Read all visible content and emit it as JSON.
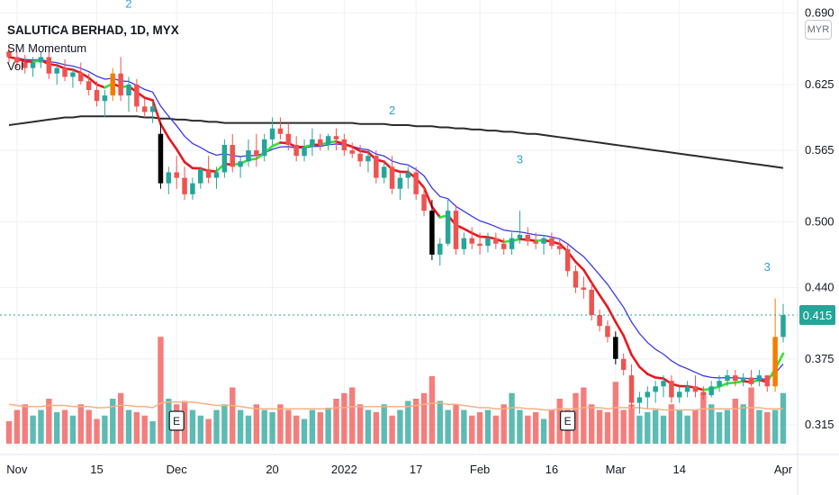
{
  "legend": {
    "symbol": "SALUTICA BERHAD, 1D, MYX",
    "indicator": "SM Momentum",
    "volume_label": "Vol"
  },
  "currency_button": "MYR",
  "last_price_label": "0.415",
  "colors": {
    "up": "#26a69a",
    "down": "#ef5350",
    "dn_black": "#000000",
    "highlight": "#f57c00",
    "ema_fast": "#e8171f",
    "ema_fast_bull": "#34e234",
    "ema_mid": "#3a3ae6",
    "ema_long": "#2b2b2b",
    "vol_ma": "#f4b183",
    "grid": "#eef0f3",
    "signal": "#2e9fd8"
  },
  "chart_data": {
    "type": "candlestick",
    "ylim": [
      0.292,
      0.702
    ],
    "y_ticks": [
      0.315,
      0.375,
      0.44,
      0.5,
      0.565,
      0.625,
      0.69
    ],
    "y_tick_labels": [
      "0.315",
      "0.375",
      "0.440",
      "0.500",
      "0.565",
      "0.625",
      "0.690"
    ],
    "x_ticks": [
      {
        "i": 1,
        "label": "Nov"
      },
      {
        "i": 11,
        "label": "15"
      },
      {
        "i": 21,
        "label": "Dec"
      },
      {
        "i": 33,
        "label": "20"
      },
      {
        "i": 42,
        "label": "2022"
      },
      {
        "i": 51,
        "label": "17"
      },
      {
        "i": 59,
        "label": "Feb"
      },
      {
        "i": 68,
        "label": "16"
      },
      {
        "i": 76,
        "label": "Mar"
      },
      {
        "i": 84,
        "label": "14"
      },
      {
        "i": 97,
        "label": "Apr"
      }
    ],
    "x_count": 98,
    "ohlc": [
      [
        0.655,
        0.66,
        0.645,
        0.65
      ],
      [
        0.65,
        0.655,
        0.64,
        0.645
      ],
      [
        0.645,
        0.652,
        0.635,
        0.64
      ],
      [
        0.64,
        0.65,
        0.632,
        0.645
      ],
      [
        0.645,
        0.655,
        0.64,
        0.65
      ],
      [
        0.65,
        0.655,
        0.63,
        0.635
      ],
      [
        0.635,
        0.645,
        0.625,
        0.64
      ],
      [
        0.64,
        0.648,
        0.628,
        0.632
      ],
      [
        0.632,
        0.64,
        0.622,
        0.636
      ],
      [
        0.636,
        0.645,
        0.625,
        0.628
      ],
      [
        0.628,
        0.635,
        0.615,
        0.62
      ],
      [
        0.62,
        0.628,
        0.605,
        0.61
      ],
      [
        0.61,
        0.62,
        0.595,
        0.615
      ],
      [
        0.615,
        0.64,
        0.61,
        0.635
      ],
      [
        0.635,
        0.65,
        0.61,
        0.615
      ],
      [
        0.615,
        0.632,
        0.6,
        0.625
      ],
      [
        0.625,
        0.63,
        0.6,
        0.605
      ],
      [
        0.605,
        0.612,
        0.595,
        0.6
      ],
      [
        0.6,
        0.61,
        0.59,
        0.605
      ],
      [
        0.58,
        0.59,
        0.53,
        0.535
      ],
      [
        0.535,
        0.55,
        0.525,
        0.545
      ],
      [
        0.545,
        0.56,
        0.53,
        0.54
      ],
      [
        0.54,
        0.55,
        0.52,
        0.525
      ],
      [
        0.525,
        0.54,
        0.52,
        0.535
      ],
      [
        0.535,
        0.55,
        0.53,
        0.548
      ],
      [
        0.548,
        0.56,
        0.535,
        0.54
      ],
      [
        0.54,
        0.55,
        0.53,
        0.545
      ],
      [
        0.545,
        0.575,
        0.54,
        0.57
      ],
      [
        0.57,
        0.58,
        0.545,
        0.55
      ],
      [
        0.55,
        0.56,
        0.54,
        0.555
      ],
      [
        0.555,
        0.575,
        0.55,
        0.565
      ],
      [
        0.565,
        0.58,
        0.55,
        0.56
      ],
      [
        0.56,
        0.58,
        0.555,
        0.575
      ],
      [
        0.575,
        0.595,
        0.57,
        0.585
      ],
      [
        0.585,
        0.595,
        0.575,
        0.58
      ],
      [
        0.58,
        0.59,
        0.565,
        0.57
      ],
      [
        0.57,
        0.578,
        0.555,
        0.56
      ],
      [
        0.56,
        0.575,
        0.555,
        0.568
      ],
      [
        0.568,
        0.585,
        0.56,
        0.575
      ],
      [
        0.575,
        0.58,
        0.565,
        0.57
      ],
      [
        0.57,
        0.58,
        0.565,
        0.578
      ],
      [
        0.578,
        0.585,
        0.565,
        0.575
      ],
      [
        0.575,
        0.58,
        0.56,
        0.565
      ],
      [
        0.565,
        0.572,
        0.558,
        0.562
      ],
      [
        0.562,
        0.57,
        0.55,
        0.555
      ],
      [
        0.555,
        0.565,
        0.545,
        0.56
      ],
      [
        0.56,
        0.565,
        0.535,
        0.54
      ],
      [
        0.54,
        0.555,
        0.535,
        0.55
      ],
      [
        0.55,
        0.56,
        0.525,
        0.53
      ],
      [
        0.53,
        0.545,
        0.52,
        0.54
      ],
      [
        0.54,
        0.55,
        0.53,
        0.545
      ],
      [
        0.545,
        0.55,
        0.52,
        0.525
      ],
      [
        0.525,
        0.532,
        0.505,
        0.51
      ],
      [
        0.51,
        0.52,
        0.465,
        0.47
      ],
      [
        0.47,
        0.485,
        0.46,
        0.48
      ],
      [
        0.48,
        0.52,
        0.478,
        0.51
      ],
      [
        0.51,
        0.515,
        0.47,
        0.475
      ],
      [
        0.475,
        0.49,
        0.47,
        0.485
      ],
      [
        0.485,
        0.495,
        0.475,
        0.48
      ],
      [
        0.48,
        0.49,
        0.47,
        0.478
      ],
      [
        0.478,
        0.49,
        0.472,
        0.485
      ],
      [
        0.485,
        0.49,
        0.475,
        0.48
      ],
      [
        0.48,
        0.485,
        0.47,
        0.475
      ],
      [
        0.475,
        0.49,
        0.47,
        0.485
      ],
      [
        0.485,
        0.51,
        0.48,
        0.488
      ],
      [
        0.488,
        0.495,
        0.478,
        0.482
      ],
      [
        0.482,
        0.49,
        0.475,
        0.48
      ],
      [
        0.48,
        0.488,
        0.47,
        0.485
      ],
      [
        0.485,
        0.49,
        0.475,
        0.478
      ],
      [
        0.478,
        0.485,
        0.47,
        0.475
      ],
      [
        0.475,
        0.48,
        0.45,
        0.455
      ],
      [
        0.455,
        0.46,
        0.435,
        0.44
      ],
      [
        0.44,
        0.45,
        0.43,
        0.438
      ],
      [
        0.438,
        0.445,
        0.41,
        0.415
      ],
      [
        0.415,
        0.42,
        0.4,
        0.405
      ],
      [
        0.405,
        0.41,
        0.39,
        0.395
      ],
      [
        0.395,
        0.4,
        0.37,
        0.375
      ],
      [
        0.375,
        0.38,
        0.36,
        0.365
      ],
      [
        0.36,
        0.37,
        0.33,
        0.335
      ],
      [
        0.335,
        0.345,
        0.325,
        0.34
      ],
      [
        0.34,
        0.35,
        0.33,
        0.345
      ],
      [
        0.345,
        0.355,
        0.335,
        0.35
      ],
      [
        0.35,
        0.36,
        0.34,
        0.355
      ],
      [
        0.355,
        0.36,
        0.335,
        0.34
      ],
      [
        0.34,
        0.35,
        0.335,
        0.345
      ],
      [
        0.345,
        0.355,
        0.34,
        0.35
      ],
      [
        0.35,
        0.36,
        0.34,
        0.345
      ],
      [
        0.345,
        0.35,
        0.338,
        0.342
      ],
      [
        0.342,
        0.355,
        0.34,
        0.35
      ],
      [
        0.35,
        0.36,
        0.345,
        0.355
      ],
      [
        0.355,
        0.365,
        0.35,
        0.36
      ],
      [
        0.36,
        0.365,
        0.35,
        0.355
      ],
      [
        0.355,
        0.362,
        0.35,
        0.358
      ],
      [
        0.358,
        0.365,
        0.35,
        0.352
      ],
      [
        0.355,
        0.365,
        0.35,
        0.36
      ],
      [
        0.36,
        0.36,
        0.345,
        0.35
      ],
      [
        0.35,
        0.43,
        0.345,
        0.395
      ],
      [
        0.395,
        0.425,
        0.39,
        0.415
      ]
    ],
    "special": {
      "black": [
        19,
        53,
        76
      ],
      "orange": [
        13,
        96
      ]
    },
    "volume": [
      0.2,
      0.3,
      0.35,
      0.25,
      0.3,
      0.4,
      0.28,
      0.3,
      0.25,
      0.35,
      0.3,
      0.22,
      0.25,
      0.4,
      0.45,
      0.3,
      0.28,
      0.25,
      0.2,
      0.95,
      0.4,
      0.35,
      0.38,
      0.3,
      0.25,
      0.22,
      0.3,
      0.35,
      0.5,
      0.3,
      0.25,
      0.35,
      0.3,
      0.28,
      0.35,
      0.3,
      0.25,
      0.22,
      0.3,
      0.28,
      0.32,
      0.4,
      0.45,
      0.5,
      0.35,
      0.3,
      0.28,
      0.35,
      0.25,
      0.3,
      0.38,
      0.4,
      0.45,
      0.6,
      0.38,
      0.3,
      0.35,
      0.3,
      0.25,
      0.28,
      0.3,
      0.25,
      0.35,
      0.45,
      0.3,
      0.25,
      0.28,
      0.22,
      0.3,
      0.4,
      0.3,
      0.45,
      0.5,
      0.35,
      0.3,
      0.28,
      0.55,
      0.3,
      0.35,
      0.25,
      0.28,
      0.3,
      0.25,
      0.35,
      0.3,
      0.25,
      0.3,
      0.45,
      0.35,
      0.28,
      0.3,
      0.4,
      0.35,
      0.5,
      0.3,
      0.28,
      0.3,
      0.45
    ],
    "volume_ma": [
      0.35,
      0.34,
      0.33,
      0.33,
      0.33,
      0.34,
      0.34,
      0.34,
      0.33,
      0.33,
      0.33,
      0.32,
      0.32,
      0.33,
      0.34,
      0.34,
      0.33,
      0.33,
      0.32,
      0.36,
      0.37,
      0.37,
      0.37,
      0.37,
      0.36,
      0.35,
      0.34,
      0.34,
      0.34,
      0.33,
      0.32,
      0.31,
      0.31,
      0.31,
      0.31,
      0.31,
      0.31,
      0.31,
      0.31,
      0.31,
      0.31,
      0.32,
      0.32,
      0.33,
      0.33,
      0.33,
      0.33,
      0.33,
      0.33,
      0.33,
      0.33,
      0.34,
      0.35,
      0.36,
      0.36,
      0.35,
      0.35,
      0.34,
      0.33,
      0.32,
      0.32,
      0.31,
      0.31,
      0.32,
      0.32,
      0.31,
      0.31,
      0.3,
      0.3,
      0.31,
      0.31,
      0.31,
      0.32,
      0.32,
      0.32,
      0.31,
      0.32,
      0.32,
      0.32,
      0.32,
      0.31,
      0.31,
      0.3,
      0.3,
      0.3,
      0.3,
      0.3,
      0.31,
      0.31,
      0.31,
      0.31,
      0.31,
      0.32,
      0.32,
      0.32,
      0.31,
      0.31,
      0.31
    ],
    "earnings_markers": [
      {
        "i": 21,
        "label": "E"
      },
      {
        "i": 70,
        "label": "E"
      }
    ],
    "signal_labels": [
      {
        "i": 15,
        "y": 0.695,
        "label": "2"
      },
      {
        "i": 48,
        "y": 0.598,
        "label": "2"
      },
      {
        "i": 64,
        "y": 0.553,
        "label": "3"
      },
      {
        "i": 95,
        "y": 0.455,
        "label": "3"
      }
    ],
    "ema_long": [
      0.588,
      0.589,
      0.59,
      0.591,
      0.592,
      0.593,
      0.594,
      0.595,
      0.595,
      0.596,
      0.596,
      0.596,
      0.596,
      0.596,
      0.596,
      0.596,
      0.596,
      0.595,
      0.595,
      0.594,
      0.594,
      0.593,
      0.593,
      0.592,
      0.592,
      0.591,
      0.591,
      0.59,
      0.59,
      0.59,
      0.59,
      0.59,
      0.59,
      0.59,
      0.59,
      0.59,
      0.59,
      0.59,
      0.59,
      0.59,
      0.59,
      0.59,
      0.59,
      0.59,
      0.589,
      0.589,
      0.589,
      0.589,
      0.588,
      0.588,
      0.588,
      0.587,
      0.587,
      0.587,
      0.586,
      0.586,
      0.585,
      0.585,
      0.584,
      0.584,
      0.583,
      0.583,
      0.582,
      0.582,
      0.581,
      0.58,
      0.58,
      0.579,
      0.578,
      0.577,
      0.576,
      0.575,
      0.574,
      0.573,
      0.572,
      0.571,
      0.57,
      0.569,
      0.568,
      0.567,
      0.566,
      0.565,
      0.564,
      0.563,
      0.562,
      0.561,
      0.56,
      0.559,
      0.558,
      0.557,
      0.556,
      0.555,
      0.554,
      0.553,
      0.552,
      0.551,
      0.55,
      0.549
    ]
  }
}
